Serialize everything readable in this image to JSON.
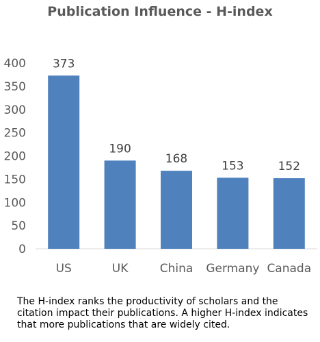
{
  "chart_data": {
    "type": "bar",
    "title": "Publication Influence - H-index",
    "categories": [
      "US",
      "UK",
      "China",
      "Germany",
      "Canada"
    ],
    "values": [
      373,
      190,
      168,
      153,
      152
    ],
    "ylim": [
      0,
      400
    ],
    "yticks": [
      "0",
      "50",
      "100",
      "150",
      "200",
      "250",
      "300",
      "350",
      "400"
    ],
    "data_labels": [
      "373",
      "190",
      "168",
      "153",
      "152"
    ],
    "bar_color": "#4f81bd",
    "grid": false,
    "legend": "none"
  },
  "caption": "The H-index ranks the productivity of scholars and the citation impact their publications.  A higher H-index indicates that more publications that are widely cited."
}
